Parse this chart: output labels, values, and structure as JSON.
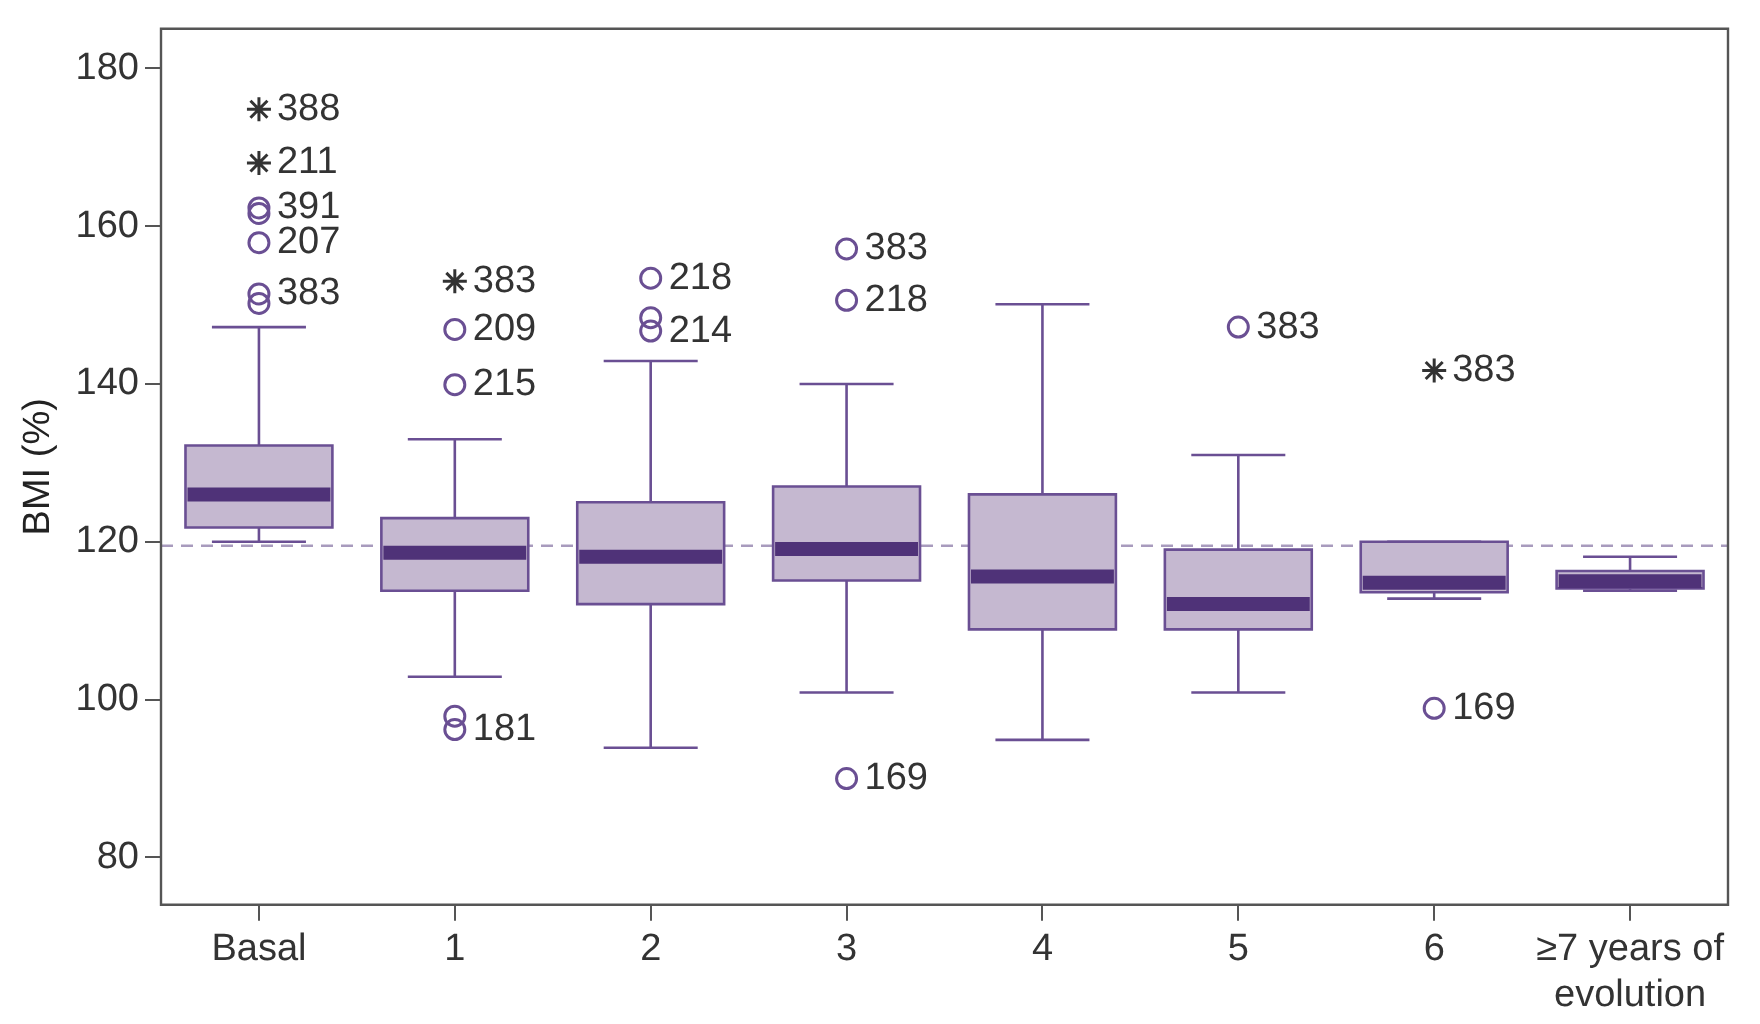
{
  "chart_data": {
    "type": "box",
    "ylabel": "BMI (%)",
    "categories": [
      "Basal",
      "1",
      "2",
      "3",
      "4",
      "5",
      "6",
      "≥7 years of evolution"
    ],
    "ylim": [
      74,
      185
    ],
    "yticks": [
      80,
      100,
      120,
      140,
      160,
      180
    ],
    "grid": false,
    "legend": false,
    "series": [
      {
        "color": "#c5b8d0",
        "boxes": [
          {
            "low": 120,
            "q1": 121.8,
            "median": 126,
            "q3": 132.2,
            "high": 147.2
          },
          {
            "low": 102.9,
            "q1": 113.8,
            "median": 118.6,
            "q3": 123,
            "high": 133
          },
          {
            "low": 93.9,
            "q1": 112.1,
            "median": 118.1,
            "q3": 125,
            "high": 142.9
          },
          {
            "low": 100.9,
            "q1": 115.1,
            "median": 119.1,
            "q3": 127,
            "high": 140
          },
          {
            "low": 94.9,
            "q1": 108.9,
            "median": 115.6,
            "q3": 126,
            "high": 150.1
          },
          {
            "low": 100.9,
            "q1": 108.9,
            "median": 112.1,
            "q3": 119,
            "high": 131
          },
          {
            "low": 112.8,
            "q1": 113.6,
            "median": 114.8,
            "q3": 120,
            "high": 120
          },
          {
            "low": 113.8,
            "q1": 114.1,
            "median": 115,
            "q3": 116.3,
            "high": 118.1
          }
        ]
      },
      {
        "type": "scatter",
        "marker": "circle",
        "color": "#6a4f93",
        "x": [
          "Basal",
          "Basal",
          "Basal",
          "Basal",
          "Basal",
          "1",
          "1",
          "1",
          "1",
          "2",
          "2",
          "2",
          "3",
          "3",
          "3",
          "5",
          "6"
        ],
        "values": [
          162.3,
          161.6,
          157.9,
          151.4,
          150.2,
          146.9,
          139.9,
          97.9,
          96.2,
          153.4,
          148.4,
          146.7,
          157.1,
          150.6,
          90,
          147.2,
          98.9
        ]
      },
      {
        "type": "scatter",
        "marker": "cross",
        "color": "#333333",
        "x": [
          "Basal",
          "Basal",
          "1",
          "6"
        ],
        "values": [
          174.8,
          168,
          153,
          141.7
        ]
      }
    ],
    "ref_lines": [
      {
        "axis": "y",
        "value": 119.5,
        "color": "#a89bbd",
        "line_style": "dashed"
      }
    ],
    "annotations": [
      {
        "text": "388",
        "x": "Basal",
        "y": 174.8
      },
      {
        "text": "211",
        "x": "Basal",
        "y": 168
      },
      {
        "text": "391",
        "x": "Basal",
        "y": 162.3
      },
      {
        "text": "207",
        "x": "Basal",
        "y": 157.9
      },
      {
        "text": "383",
        "x": "Basal",
        "y": 151.4
      },
      {
        "text": "383",
        "x": "1",
        "y": 153
      },
      {
        "text": "209",
        "x": "1",
        "y": 146.9
      },
      {
        "text": "215",
        "x": "1",
        "y": 139.9
      },
      {
        "text": "181",
        "x": "1",
        "y": 96.2
      },
      {
        "text": "218",
        "x": "2",
        "y": 153.4
      },
      {
        "text": "214",
        "x": "2",
        "y": 146.7
      },
      {
        "text": "383",
        "x": "3",
        "y": 157.1
      },
      {
        "text": "218",
        "x": "3",
        "y": 150.6
      },
      {
        "text": "169",
        "x": "3",
        "y": 90
      },
      {
        "text": "383",
        "x": "5",
        "y": 147.2
      },
      {
        "text": "383",
        "x": "6",
        "y": 141.7
      },
      {
        "text": "169",
        "x": "6",
        "y": 98.9
      }
    ]
  }
}
